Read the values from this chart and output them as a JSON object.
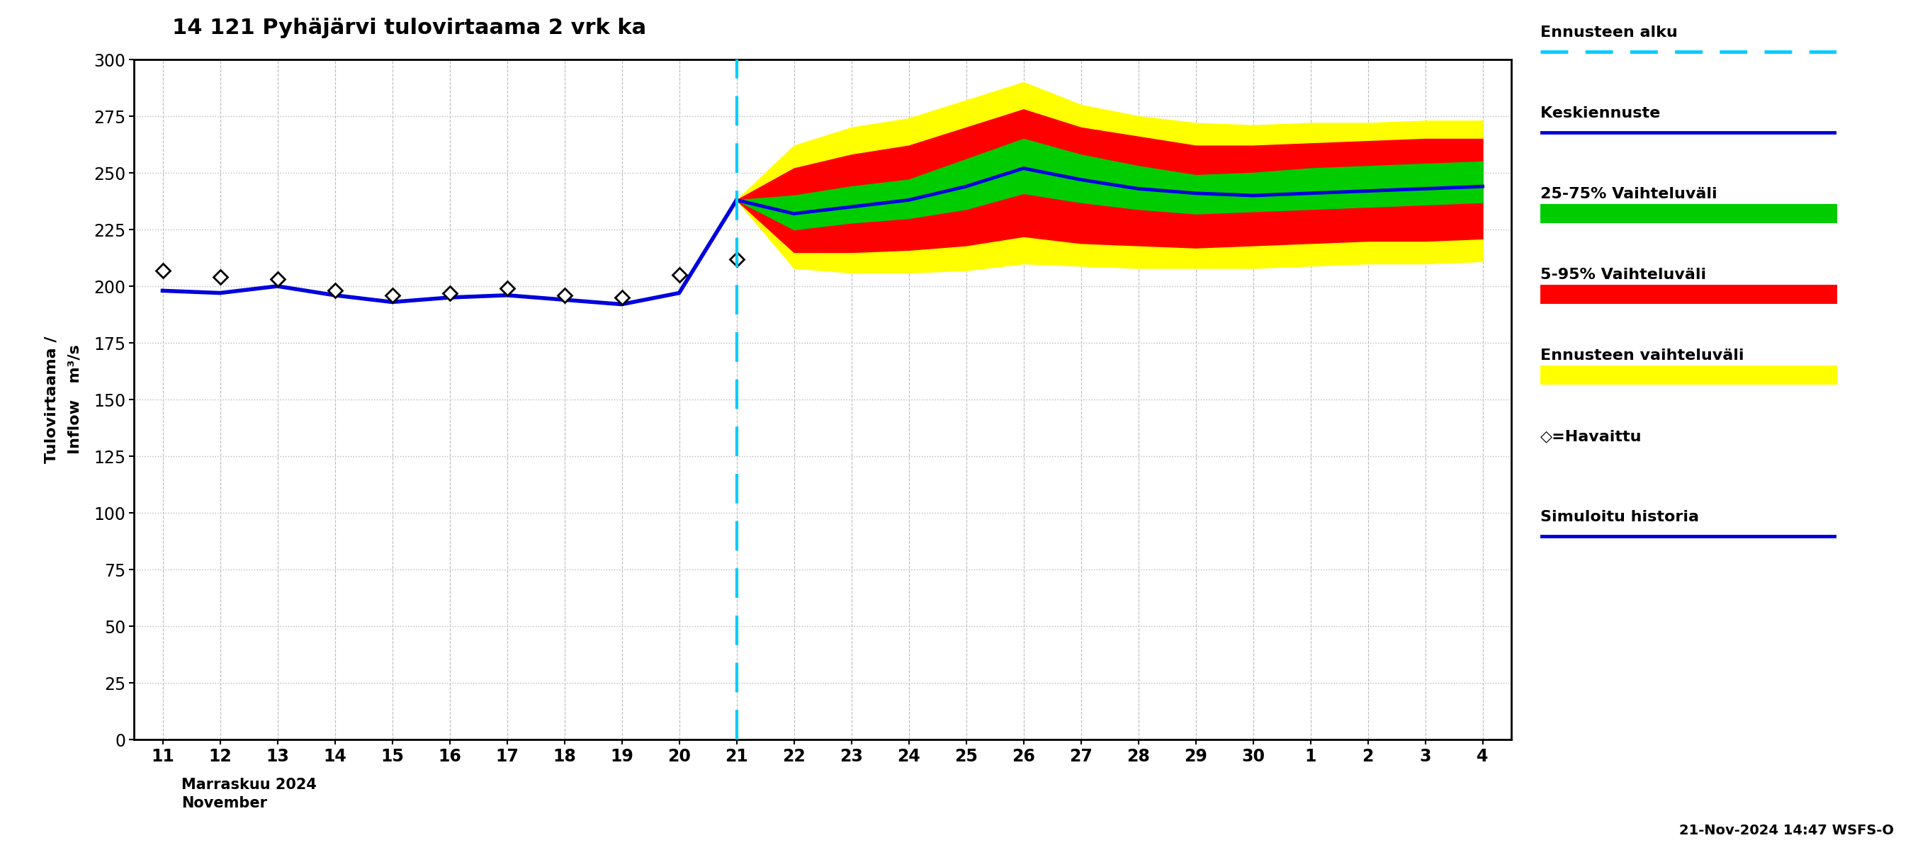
{
  "title": "14 121 Pyhäjärvi tulovirtaama 2 vrk ka",
  "footnote": "21-Nov-2024 14:47 WSFS-O",
  "ylim": [
    0,
    300
  ],
  "yticks": [
    0,
    25,
    50,
    75,
    100,
    125,
    150,
    175,
    200,
    225,
    250,
    275,
    300
  ],
  "background_color": "#ffffff",
  "grid_minor_color": "#cccccc",
  "grid_major_color": "#999999",
  "hist_line_color": "#0000dd",
  "mean_forecast_color": "#0000dd",
  "band_25_75_color": "#00cc00",
  "band_5_95_color": "#ff0000",
  "band_min_max_color": "#ffff00",
  "vline_color": "#00ccff",
  "history_x": [
    11,
    12,
    13,
    14,
    15,
    16,
    17,
    18,
    19,
    20,
    21
  ],
  "history_y": [
    198,
    197,
    200,
    196,
    193,
    195,
    196,
    194,
    192,
    197,
    238
  ],
  "observed_x": [
    11,
    12,
    13,
    14,
    15,
    16,
    17,
    18,
    19,
    20,
    21
  ],
  "observed_y": [
    207,
    204,
    203,
    198,
    196,
    197,
    199,
    196,
    195,
    205,
    212
  ],
  "forecast_x": [
    21,
    22,
    23,
    24,
    25,
    26,
    27,
    28,
    29,
    30,
    31,
    32,
    33,
    34
  ],
  "mean_y": [
    238,
    232,
    235,
    238,
    244,
    252,
    247,
    243,
    241,
    240,
    241,
    242,
    243,
    244
  ],
  "p25_y": [
    238,
    225,
    228,
    230,
    234,
    241,
    237,
    234,
    232,
    233,
    234,
    235,
    236,
    237
  ],
  "p75_y": [
    238,
    240,
    244,
    247,
    256,
    265,
    258,
    253,
    249,
    250,
    252,
    253,
    254,
    255
  ],
  "p05_y": [
    238,
    215,
    215,
    216,
    218,
    222,
    219,
    218,
    217,
    218,
    219,
    220,
    220,
    221
  ],
  "p95_y": [
    238,
    252,
    258,
    262,
    270,
    278,
    270,
    266,
    262,
    262,
    263,
    264,
    265,
    265
  ],
  "pmin_y": [
    238,
    208,
    206,
    206,
    207,
    210,
    209,
    208,
    208,
    208,
    209,
    210,
    210,
    211
  ],
  "pmax_y": [
    238,
    262,
    270,
    274,
    282,
    290,
    280,
    275,
    272,
    271,
    272,
    272,
    273,
    273
  ]
}
